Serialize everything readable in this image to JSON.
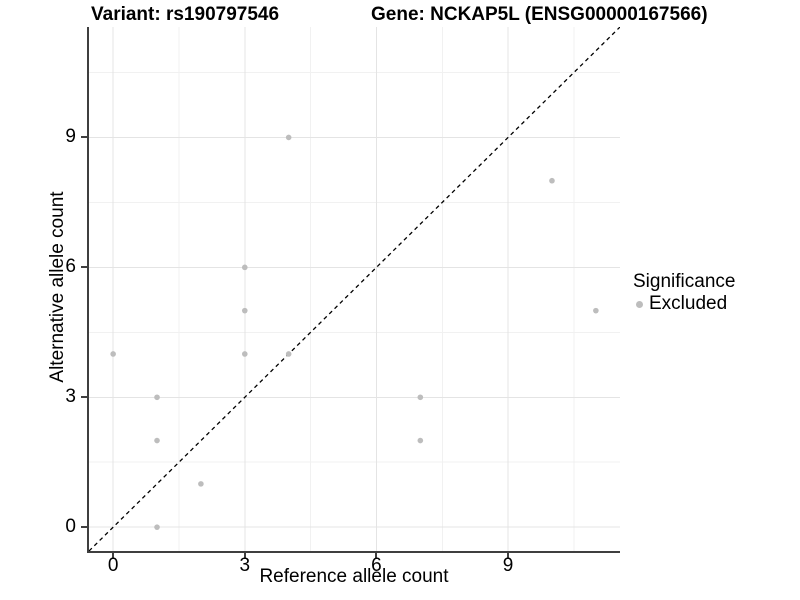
{
  "titles": {
    "variant": "Variant: rs190797546",
    "gene": "Gene: NCKAP5L (ENSG00000167566)"
  },
  "axes": {
    "x": {
      "label": "Reference allele count",
      "tick_labels": [
        "0",
        "3",
        "6",
        "9"
      ]
    },
    "y": {
      "label": "Alternative allele count",
      "tick_labels": [
        "0",
        "3",
        "6",
        "9"
      ]
    }
  },
  "legend": {
    "title": "Significance",
    "items": [
      {
        "label": "Excluded",
        "color": "#bdbdbd"
      }
    ]
  },
  "colors": {
    "point": "#bdbdbd",
    "axis_line": "#3f3f3f",
    "major_grid": "#e4e4e4",
    "minor_grid": "#f1f1f1",
    "identity_line": "#000000",
    "background": "#ffffff"
  },
  "chart_data": {
    "type": "scatter",
    "title": "Variant: rs190797546 — Gene: NCKAP5L (ENSG00000167566)",
    "xlabel": "Reference allele count",
    "ylabel": "Alternative allele count",
    "xlim": [
      -0.55,
      11.55
    ],
    "ylim": [
      -0.55,
      11.55
    ],
    "x_ticks": [
      0,
      3,
      6,
      9
    ],
    "y_ticks": [
      0,
      3,
      6,
      9
    ],
    "x_minor_gridlines": [
      1.5,
      4.5,
      7.5,
      10.5
    ],
    "y_minor_gridlines": [
      1.5,
      4.5,
      7.5,
      10.5
    ],
    "grid": true,
    "reference_line": {
      "kind": "identity",
      "style": "dashed",
      "color": "#000000"
    },
    "legend_position": "right",
    "series": [
      {
        "name": "Excluded",
        "color": "#bdbdbd",
        "points": [
          [
            0,
            4
          ],
          [
            1,
            0
          ],
          [
            1,
            2
          ],
          [
            1,
            3
          ],
          [
            2,
            1
          ],
          [
            3,
            4
          ],
          [
            3,
            5
          ],
          [
            3,
            6
          ],
          [
            4,
            4
          ],
          [
            4,
            9
          ],
          [
            7,
            2
          ],
          [
            7,
            3
          ],
          [
            10,
            8
          ],
          [
            11,
            5
          ]
        ]
      }
    ]
  }
}
